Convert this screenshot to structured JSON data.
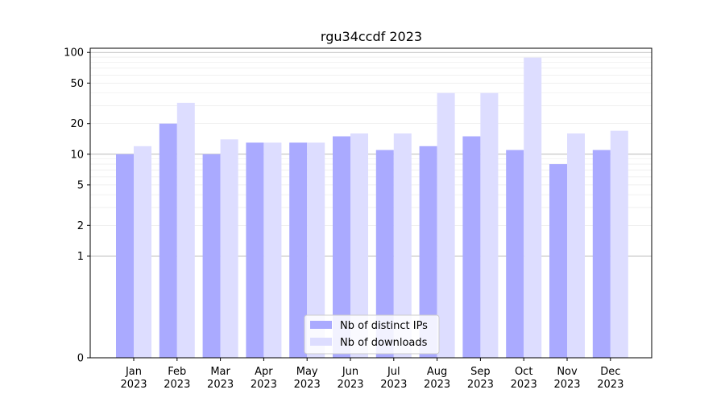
{
  "chart_data": {
    "type": "bar",
    "title": "rgu34ccdf 2023",
    "xlabel": "",
    "ylabel": "",
    "categories": [
      [
        "Jan",
        "2023"
      ],
      [
        "Feb",
        "2023"
      ],
      [
        "Mar",
        "2023"
      ],
      [
        "Apr",
        "2023"
      ],
      [
        "May",
        "2023"
      ],
      [
        "Jun",
        "2023"
      ],
      [
        "Jul",
        "2023"
      ],
      [
        "Aug",
        "2023"
      ],
      [
        "Sep",
        "2023"
      ],
      [
        "Oct",
        "2023"
      ],
      [
        "Nov",
        "2023"
      ],
      [
        "Dec",
        "2023"
      ]
    ],
    "series": [
      {
        "name": "Nb of distinct IPs",
        "color": "#aaaaff",
        "values": [
          10,
          20,
          10,
          13,
          13,
          15,
          11,
          12,
          15,
          11,
          8,
          11
        ]
      },
      {
        "name": "Nb of downloads",
        "color": "#ddddff",
        "values": [
          12,
          32,
          14,
          13,
          13,
          16,
          16,
          40,
          40,
          89,
          16,
          17
        ]
      }
    ],
    "y_scale": "symlog",
    "y_ticks": [
      0,
      1,
      2,
      5,
      10,
      20,
      50,
      100
    ],
    "ylim": [
      0,
      110
    ],
    "legend_position": "lower-center",
    "grid": true
  }
}
